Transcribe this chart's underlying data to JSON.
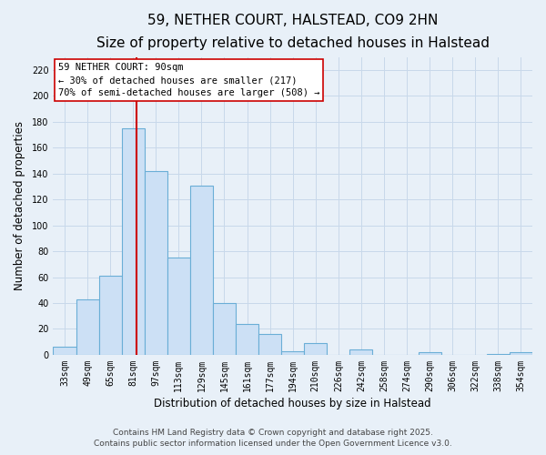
{
  "title": "59, NETHER COURT, HALSTEAD, CO9 2HN",
  "subtitle": "Size of property relative to detached houses in Halstead",
  "xlabel": "Distribution of detached houses by size in Halstead",
  "ylabel": "Number of detached properties",
  "bar_labels": [
    "33sqm",
    "49sqm",
    "65sqm",
    "81sqm",
    "97sqm",
    "113sqm",
    "129sqm",
    "145sqm",
    "161sqm",
    "177sqm",
    "194sqm",
    "210sqm",
    "226sqm",
    "242sqm",
    "258sqm",
    "274sqm",
    "290sqm",
    "306sqm",
    "322sqm",
    "338sqm",
    "354sqm"
  ],
  "bar_values": [
    6,
    43,
    61,
    175,
    142,
    75,
    131,
    40,
    24,
    16,
    3,
    9,
    0,
    4,
    0,
    0,
    2,
    0,
    0,
    1,
    2
  ],
  "bar_color": "#cce0f5",
  "bar_edgecolor": "#6aaed6",
  "grid_color": "#c8d8ea",
  "background_color": "#e8f0f8",
  "vline_color": "#cc0000",
  "vline_x_index": 3,
  "annotation_title": "59 NETHER COURT: 90sqm",
  "annotation_line1": "← 30% of detached houses are smaller (217)",
  "annotation_line2": "70% of semi-detached houses are larger (508) →",
  "annotation_box_facecolor": "#ffffff",
  "annotation_box_edgecolor": "#cc0000",
  "ylim": [
    0,
    230
  ],
  "yticks": [
    0,
    20,
    40,
    60,
    80,
    100,
    120,
    140,
    160,
    180,
    200,
    220
  ],
  "footer1": "Contains HM Land Registry data © Crown copyright and database right 2025.",
  "footer2": "Contains public sector information licensed under the Open Government Licence v3.0.",
  "title_fontsize": 11,
  "subtitle_fontsize": 9,
  "tick_fontsize": 7,
  "xlabel_fontsize": 8.5,
  "ylabel_fontsize": 8.5,
  "footer_fontsize": 6.5,
  "annotation_fontsize": 7.5
}
